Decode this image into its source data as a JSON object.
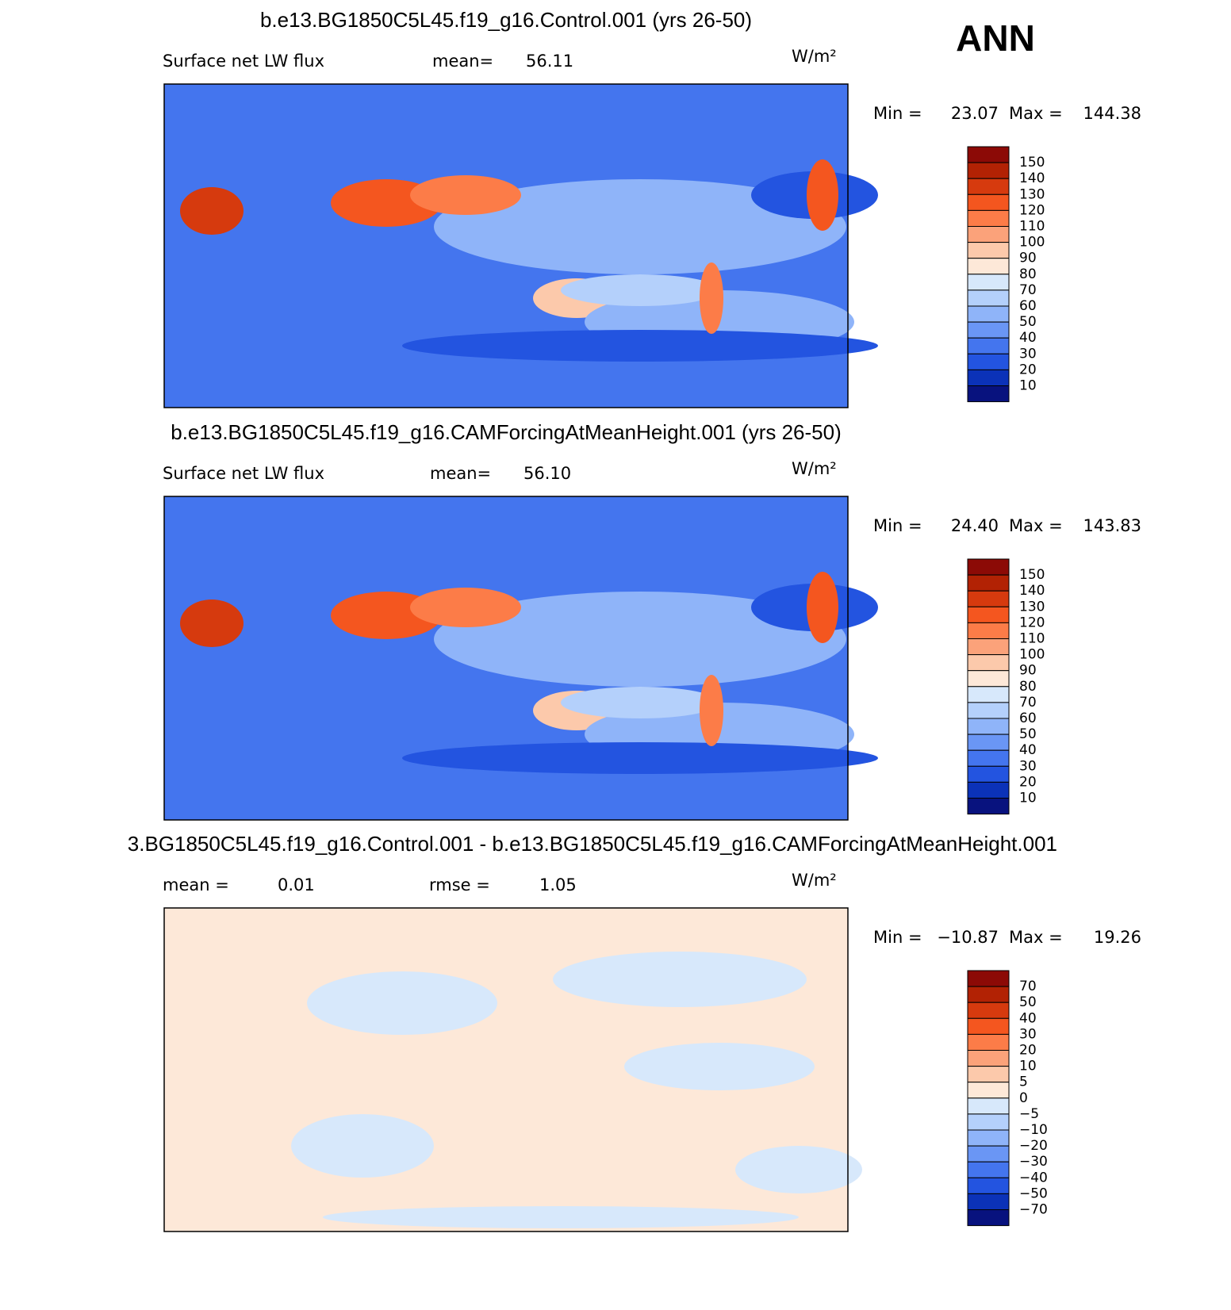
{
  "corner_label": "ANN",
  "colorbar_colors": [
    "#8c0a06",
    "#b22204",
    "#d63a0e",
    "#f4561f",
    "#fc7c48",
    "#fba27a",
    "#fcc9ab",
    "#fde8d8",
    "#d7e8fb",
    "#b4d0fb",
    "#8fb4f9",
    "#6a96f5",
    "#4475ee",
    "#2354e0",
    "#0b32b8",
    "#08127e"
  ],
  "panels": [
    {
      "title": "b.e13.BG1850C5L45.f19_g16.Control.001 (yrs 26-50)",
      "variable": "Surface net LW flux",
      "stats": [
        {
          "label": "mean=",
          "value": "56.11"
        }
      ],
      "units": "W/m²",
      "range": {
        "min_label": "Min =",
        "min": "23.07",
        "max_label": "Max =",
        "max": "144.38"
      },
      "colorbar_labels": [
        "150",
        "140",
        "130",
        "120",
        "110",
        "100",
        "90",
        "80",
        "70",
        "60",
        "50",
        "40",
        "30",
        "20",
        "10"
      ]
    },
    {
      "title": "b.e13.BG1850C5L45.f19_g16.CAMForcingAtMeanHeight.001 (yrs 26-50)",
      "variable": "Surface net LW flux",
      "stats": [
        {
          "label": "mean=",
          "value": "56.10"
        }
      ],
      "units": "W/m²",
      "range": {
        "min_label": "Min =",
        "min": "24.40",
        "max_label": "Max =",
        "max": "143.83"
      },
      "colorbar_labels": [
        "150",
        "140",
        "130",
        "120",
        "110",
        "100",
        "90",
        "80",
        "70",
        "60",
        "50",
        "40",
        "30",
        "20",
        "10"
      ]
    },
    {
      "title": "3.BG1850C5L45.f19_g16.Control.001 - b.e13.BG1850C5L45.f19_g16.CAMForcingAtMeanHeight.001",
      "stats": [
        {
          "label": "mean =",
          "value": "0.01"
        },
        {
          "label": "rmse =",
          "value": "1.05"
        }
      ],
      "units": "W/m²",
      "range": {
        "min_label": "Min =",
        "min": "−10.87",
        "max_label": "Max =",
        "max": "19.26"
      },
      "colorbar_labels": [
        "70",
        "50",
        "40",
        "30",
        "20",
        "10",
        "5",
        "0",
        "−5",
        "−10",
        "−20",
        "−30",
        "−40",
        "−50",
        "−70"
      ]
    }
  ]
}
